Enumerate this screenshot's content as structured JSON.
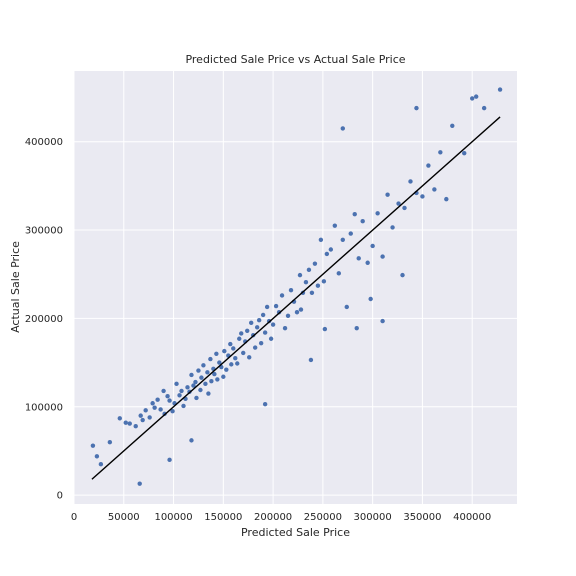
{
  "chart_data": {
    "type": "scatter",
    "title": "Predicted Sale Price vs Actual Sale Price",
    "xlabel": "Predicted Sale Price",
    "ylabel": "Actual Sale Price",
    "xlim": [
      0,
      445000
    ],
    "ylim": [
      -10000,
      480000
    ],
    "x_ticks": [
      0,
      50000,
      100000,
      150000,
      200000,
      250000,
      300000,
      350000,
      400000
    ],
    "x_tick_labels": [
      "0",
      "50000",
      "100000",
      "150000",
      "200000",
      "250000",
      "300000",
      "350000",
      "400000"
    ],
    "y_ticks": [
      0,
      100000,
      200000,
      300000,
      400000
    ],
    "y_tick_labels": [
      "0",
      "100000",
      "200000",
      "300000",
      "400000"
    ],
    "grid": true,
    "background_color": "#eaeaf2",
    "point_color": "#4c72b0",
    "line_color": "#000000",
    "reference_line": {
      "x": [
        18000,
        428000
      ],
      "y": [
        18000,
        428000
      ]
    },
    "series": [
      {
        "x": [
          19000,
          23000,
          27000,
          36000,
          46000,
          52000,
          56000,
          62000,
          67000,
          69000,
          72000,
          76000,
          79000,
          81000,
          84000,
          87000,
          90000,
          91000,
          94000,
          96000,
          99000,
          101000,
          103000,
          106000,
          108000,
          110000,
          112000,
          114000,
          116000,
          118000,
          120000,
          122000,
          123000,
          125000,
          127000,
          128000,
          130000,
          132000,
          134000,
          135000,
          137000,
          138000,
          140000,
          141000,
          143000,
          144000,
          146000,
          148000,
          150000,
          151000,
          153000,
          155000,
          157000,
          158000,
          160000,
          162000,
          164000,
          166000,
          168000,
          170000,
          172000,
          174000,
          176000,
          178000,
          180000,
          182000,
          184000,
          186000,
          188000,
          190000,
          192000,
          194000,
          196000,
          198000,
          200000,
          203000,
          206000,
          209000,
          212000,
          215000,
          218000,
          221000,
          224000,
          227000,
          230000,
          233000,
          236000,
          239000,
          242000,
          245000,
          248000,
          251000,
          254000,
          258000,
          262000,
          266000,
          270000,
          274000,
          278000,
          282000,
          286000,
          290000,
          295000,
          300000,
          305000,
          310000,
          315000,
          320000,
          326000,
          332000,
          338000,
          344000,
          350000,
          356000,
          362000,
          368000,
          374000,
          380000,
          392000,
          400000,
          404000,
          412000,
          428000,
          270000,
          344000,
          298000,
          118000,
          96000,
          66000,
          192000,
          238000,
          284000,
          310000,
          252000,
          330000,
          228000
        ],
        "y": [
          56000,
          44000,
          35000,
          60000,
          87000,
          82000,
          81000,
          78000,
          90000,
          85000,
          96000,
          88000,
          104000,
          99000,
          108000,
          97000,
          118000,
          92000,
          112000,
          107000,
          95000,
          104000,
          126000,
          113000,
          118000,
          101000,
          109000,
          122000,
          117000,
          136000,
          124000,
          128000,
          110000,
          141000,
          119000,
          133000,
          147000,
          126000,
          139000,
          115000,
          154000,
          129000,
          143000,
          137000,
          160000,
          131000,
          150000,
          145000,
          134000,
          163000,
          142000,
          158000,
          171000,
          148000,
          166000,
          155000,
          149000,
          177000,
          183000,
          161000,
          174000,
          186000,
          156000,
          195000,
          181000,
          167000,
          190000,
          198000,
          172000,
          204000,
          184000,
          213000,
          197000,
          177000,
          193000,
          214000,
          207000,
          226000,
          189000,
          203000,
          232000,
          219000,
          207000,
          249000,
          229000,
          241000,
          255000,
          229000,
          262000,
          237000,
          289000,
          242000,
          273000,
          278000,
          305000,
          251000,
          289000,
          213000,
          296000,
          318000,
          268000,
          310000,
          263000,
          282000,
          319000,
          270000,
          340000,
          303000,
          330000,
          325000,
          355000,
          342000,
          338000,
          373000,
          346000,
          388000,
          335000,
          418000,
          387000,
          449000,
          451000,
          438000,
          459000,
          415000,
          438000,
          222000,
          62000,
          40000,
          13000,
          103000,
          153000,
          189000,
          197000,
          188000,
          249000,
          210000
        ]
      }
    ]
  }
}
